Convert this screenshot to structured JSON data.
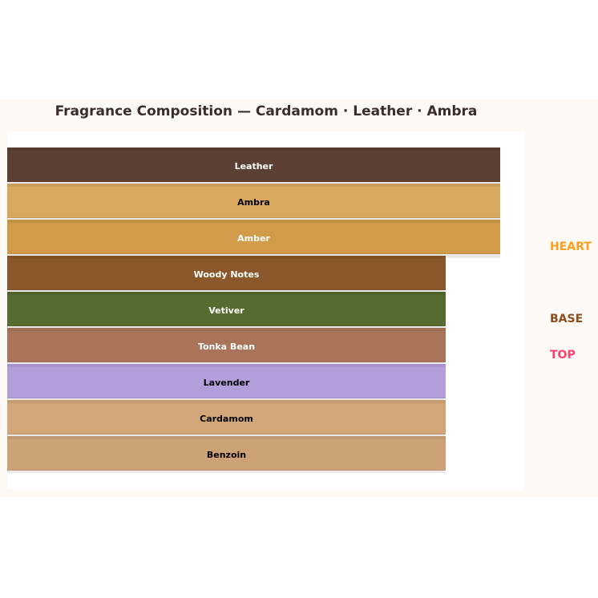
{
  "chart_data": {
    "type": "bar",
    "title": "Fragrance Composition — Cardamom · Leather · Ambra",
    "orientation": "horizontal-stacked-layers",
    "layers": [
      {
        "label": "Leather",
        "value": 100,
        "color": "#5c4033",
        "text_color": "#ffffff"
      },
      {
        "label": "Ambra",
        "value": 100,
        "color": "#d8a760",
        "text_color": "#000000"
      },
      {
        "label": "Amber",
        "value": 100,
        "color": "#d19b4a",
        "text_color": "#ffffff"
      },
      {
        "label": "Woody Notes",
        "value": 89,
        "color": "#8a582b",
        "text_color": "#ffffff"
      },
      {
        "label": "Vetiver",
        "value": 89,
        "color": "#556b2f",
        "text_color": "#ffffff"
      },
      {
        "label": "Tonka Bean",
        "value": 89,
        "color": "#a9745a",
        "text_color": "#ffffff"
      },
      {
        "label": "Lavender",
        "value": 89,
        "color": "#b39ddb",
        "text_color": "#000000"
      },
      {
        "label": "Cardamom",
        "value": 89,
        "color": "#d2a679",
        "text_color": "#000000"
      },
      {
        "label": "Benzoin",
        "value": 89,
        "color": "#cea277",
        "text_color": "#000000"
      }
    ],
    "tiers": [
      {
        "label": "HEART",
        "color": "#ff9f1c"
      },
      {
        "label": "BASE",
        "color": "#8b4f1f"
      },
      {
        "label": "TOP",
        "color": "#ff4070"
      }
    ]
  }
}
